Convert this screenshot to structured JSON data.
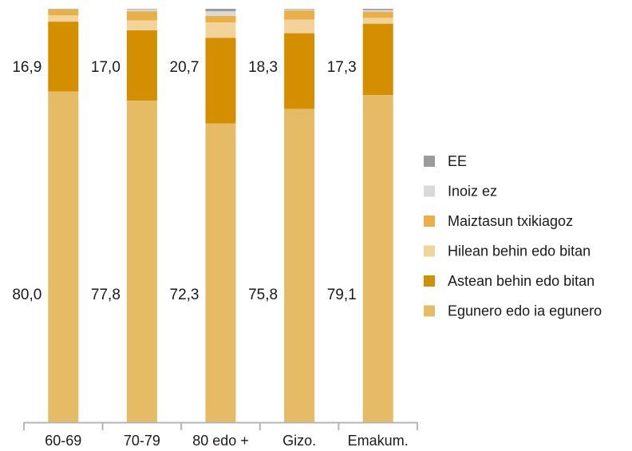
{
  "chart_data": {
    "type": "bar",
    "stacked": true,
    "title": "",
    "xlabel": "",
    "ylabel": "",
    "ylim": [
      0,
      100
    ],
    "grid": false,
    "legend_position": "right",
    "categories": [
      "60-69",
      "70-79",
      "80 edo +",
      "Gizo.",
      "Emakum."
    ],
    "series": [
      {
        "name": "Egunero edo ia egunero",
        "color": "#e6bb65",
        "values": [
          80.0,
          77.8,
          72.3,
          75.8,
          79.1
        ],
        "labels": [
          "80,0",
          "77,8",
          "72,3",
          "75,8",
          "79,1"
        ]
      },
      {
        "name": "Astean behin edo bitan",
        "color": "#d48f00",
        "values": [
          16.9,
          17.0,
          20.7,
          18.3,
          17.3
        ],
        "labels": [
          "16,9",
          "17,0",
          "20,7",
          "18,3",
          "17,3"
        ]
      },
      {
        "name": "Hilean behin edo bitan",
        "color": "#f2d49a",
        "values": [
          1.5,
          2.4,
          3.7,
          3.3,
          1.4
        ]
      },
      {
        "name": "Maiztasun txikiagoz",
        "color": "#e8b046",
        "values": [
          1.4,
          2.2,
          1.6,
          2.2,
          1.5
        ]
      },
      {
        "name": "Inoiz ez",
        "color": "#d9d9d9",
        "values": [
          0.1,
          0.5,
          1.1,
          0.3,
          0.4
        ]
      },
      {
        "name": "EE",
        "color": "#9b9b9b",
        "values": [
          0.1,
          0.1,
          0.6,
          0.1,
          0.3
        ]
      }
    ],
    "legend_order": [
      "EE",
      "Inoiz ez",
      "Maiztasun txikiagoz",
      "Hilean behin edo bitan",
      "Astean behin edo bitan",
      "Egunero edo ia egunero"
    ]
  }
}
